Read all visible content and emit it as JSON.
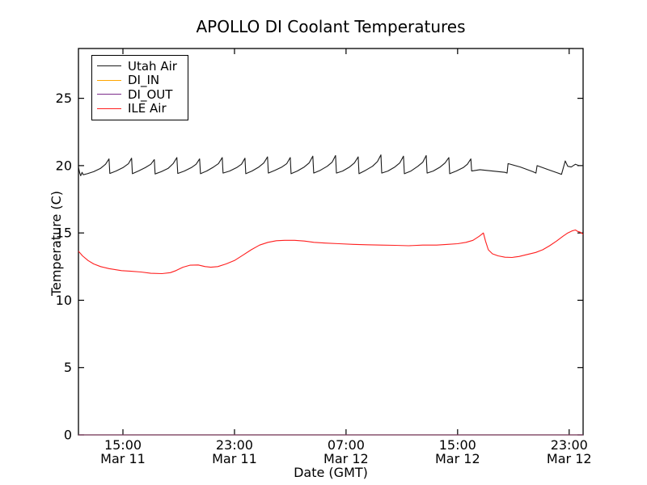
{
  "chart_data": {
    "type": "line",
    "title": "APOLLO DI Coolant Temperatures",
    "xlabel": "Date (GMT)",
    "ylabel": "Temperature (C)",
    "x_unit": "hours since Mar 11 00:00 GMT",
    "xlim": [
      11.81,
      48.0
    ],
    "ylim": [
      0,
      28.7
    ],
    "yticks": [
      0,
      5,
      10,
      15,
      20,
      25
    ],
    "xticks": [
      {
        "t": 15,
        "time": "15:00",
        "date": "Mar 11"
      },
      {
        "t": 23,
        "time": "23:00",
        "date": "Mar 11"
      },
      {
        "t": 31,
        "time": "07:00",
        "date": "Mar 12"
      },
      {
        "t": 39,
        "time": "15:00",
        "date": "Mar 12"
      },
      {
        "t": 47,
        "time": "23:00",
        "date": "Mar 12"
      }
    ],
    "grid": false,
    "legend_position": "upper left",
    "series": [
      {
        "name": "Utah Air",
        "color": "#1a1a1a",
        "opacity": 1,
        "points": [
          [
            11.81,
            19.9
          ],
          [
            11.9,
            19.45
          ],
          [
            11.97,
            19.25
          ],
          [
            12.07,
            19.5
          ],
          [
            12.15,
            19.32
          ],
          [
            12.45,
            19.4
          ],
          [
            12.9,
            19.55
          ],
          [
            13.4,
            19.8
          ],
          [
            13.75,
            20.1
          ],
          [
            14.0,
            20.5
          ],
          [
            14.06,
            19.42
          ],
          [
            14.5,
            19.6
          ],
          [
            15.0,
            19.85
          ],
          [
            15.4,
            20.15
          ],
          [
            15.62,
            20.55
          ],
          [
            15.68,
            19.4
          ],
          [
            16.1,
            19.6
          ],
          [
            16.6,
            19.85
          ],
          [
            17.0,
            20.1
          ],
          [
            17.25,
            20.45
          ],
          [
            17.31,
            19.38
          ],
          [
            17.75,
            19.55
          ],
          [
            18.25,
            19.8
          ],
          [
            18.6,
            20.15
          ],
          [
            18.87,
            20.6
          ],
          [
            18.93,
            19.42
          ],
          [
            19.4,
            19.6
          ],
          [
            19.9,
            19.85
          ],
          [
            20.25,
            20.1
          ],
          [
            20.5,
            20.5
          ],
          [
            20.56,
            19.4
          ],
          [
            21.0,
            19.6
          ],
          [
            21.5,
            19.9
          ],
          [
            21.85,
            20.15
          ],
          [
            22.12,
            20.6
          ],
          [
            22.18,
            19.45
          ],
          [
            22.65,
            19.6
          ],
          [
            23.15,
            19.85
          ],
          [
            23.5,
            20.1
          ],
          [
            23.75,
            20.55
          ],
          [
            23.81,
            19.4
          ],
          [
            24.25,
            19.6
          ],
          [
            24.75,
            19.9
          ],
          [
            25.1,
            20.2
          ],
          [
            25.37,
            20.65
          ],
          [
            25.43,
            19.45
          ],
          [
            25.9,
            19.65
          ],
          [
            26.4,
            19.9
          ],
          [
            26.75,
            20.15
          ],
          [
            27.0,
            20.6
          ],
          [
            27.06,
            19.4
          ],
          [
            27.5,
            19.6
          ],
          [
            28.0,
            19.9
          ],
          [
            28.35,
            20.2
          ],
          [
            28.62,
            20.7
          ],
          [
            28.68,
            19.45
          ],
          [
            29.15,
            19.65
          ],
          [
            29.65,
            19.95
          ],
          [
            30.0,
            20.25
          ],
          [
            30.25,
            20.75
          ],
          [
            30.31,
            19.45
          ],
          [
            30.75,
            19.6
          ],
          [
            31.25,
            19.9
          ],
          [
            31.6,
            20.2
          ],
          [
            31.87,
            20.65
          ],
          [
            31.93,
            19.4
          ],
          [
            32.4,
            19.65
          ],
          [
            32.9,
            19.95
          ],
          [
            33.25,
            20.3
          ],
          [
            33.5,
            20.8
          ],
          [
            33.56,
            19.45
          ],
          [
            34.0,
            19.6
          ],
          [
            34.5,
            19.9
          ],
          [
            34.85,
            20.2
          ],
          [
            35.12,
            20.7
          ],
          [
            35.18,
            19.4
          ],
          [
            35.65,
            19.6
          ],
          [
            36.15,
            19.95
          ],
          [
            36.5,
            20.25
          ],
          [
            36.75,
            20.75
          ],
          [
            36.81,
            19.45
          ],
          [
            37.25,
            19.6
          ],
          [
            37.75,
            19.9
          ],
          [
            38.1,
            20.2
          ],
          [
            38.37,
            20.6
          ],
          [
            38.43,
            19.4
          ],
          [
            38.9,
            19.6
          ],
          [
            39.4,
            19.85
          ],
          [
            39.7,
            20.1
          ],
          [
            39.95,
            20.5
          ],
          [
            40.01,
            19.6
          ],
          [
            40.6,
            19.7
          ],
          [
            41.5,
            19.6
          ],
          [
            42.4,
            19.5
          ],
          [
            42.55,
            19.45
          ],
          [
            42.62,
            20.15
          ],
          [
            43.5,
            19.9
          ],
          [
            44.4,
            19.55
          ],
          [
            44.62,
            19.45
          ],
          [
            44.7,
            20.0
          ],
          [
            45.5,
            19.7
          ],
          [
            46.2,
            19.45
          ],
          [
            46.45,
            19.35
          ],
          [
            46.72,
            20.35
          ],
          [
            46.9,
            19.95
          ],
          [
            47.15,
            19.9
          ],
          [
            47.45,
            20.1
          ],
          [
            47.7,
            20.0
          ],
          [
            48.0,
            20.0
          ]
        ]
      },
      {
        "name": "DI_IN",
        "color": "#ffa500",
        "opacity": 1,
        "points": [
          [
            11.81,
            0
          ],
          [
            48.0,
            0
          ]
        ]
      },
      {
        "name": "DI_OUT",
        "color": "#7d2d8b",
        "opacity": 0.8,
        "points": [
          [
            11.81,
            0
          ],
          [
            48.0,
            0
          ]
        ]
      },
      {
        "name": "ILE Air",
        "color": "#ff1f1f",
        "opacity": 1,
        "points": [
          [
            11.81,
            13.65
          ],
          [
            12.1,
            13.3
          ],
          [
            12.5,
            12.95
          ],
          [
            12.9,
            12.7
          ],
          [
            13.4,
            12.5
          ],
          [
            14.0,
            12.35
          ],
          [
            14.9,
            12.2
          ],
          [
            15.6,
            12.15
          ],
          [
            16.3,
            12.1
          ],
          [
            17.0,
            12.0
          ],
          [
            17.8,
            11.98
          ],
          [
            18.4,
            12.05
          ],
          [
            18.8,
            12.2
          ],
          [
            19.3,
            12.45
          ],
          [
            19.8,
            12.6
          ],
          [
            20.4,
            12.62
          ],
          [
            20.9,
            12.5
          ],
          [
            21.3,
            12.45
          ],
          [
            21.8,
            12.5
          ],
          [
            22.4,
            12.7
          ],
          [
            23.0,
            12.95
          ],
          [
            23.6,
            13.35
          ],
          [
            24.2,
            13.75
          ],
          [
            24.8,
            14.1
          ],
          [
            25.4,
            14.3
          ],
          [
            26.0,
            14.42
          ],
          [
            26.6,
            14.45
          ],
          [
            27.3,
            14.45
          ],
          [
            28.0,
            14.4
          ],
          [
            28.7,
            14.3
          ],
          [
            29.5,
            14.25
          ],
          [
            30.5,
            14.2
          ],
          [
            31.5,
            14.15
          ],
          [
            32.5,
            14.12
          ],
          [
            33.5,
            14.1
          ],
          [
            34.5,
            14.08
          ],
          [
            35.5,
            14.05
          ],
          [
            36.5,
            14.1
          ],
          [
            37.5,
            14.1
          ],
          [
            38.3,
            14.15
          ],
          [
            39.0,
            14.2
          ],
          [
            39.6,
            14.3
          ],
          [
            40.1,
            14.45
          ],
          [
            40.55,
            14.75
          ],
          [
            40.85,
            15.0
          ],
          [
            41.0,
            14.4
          ],
          [
            41.2,
            13.75
          ],
          [
            41.5,
            13.45
          ],
          [
            41.9,
            13.3
          ],
          [
            42.4,
            13.2
          ],
          [
            42.9,
            13.18
          ],
          [
            43.4,
            13.25
          ],
          [
            44.0,
            13.4
          ],
          [
            44.6,
            13.55
          ],
          [
            45.1,
            13.75
          ],
          [
            45.6,
            14.05
          ],
          [
            46.1,
            14.4
          ],
          [
            46.55,
            14.75
          ],
          [
            46.9,
            15.0
          ],
          [
            47.2,
            15.15
          ],
          [
            47.45,
            15.22
          ],
          [
            47.6,
            15.12
          ],
          [
            47.8,
            15.05
          ],
          [
            48.0,
            14.9
          ]
        ]
      }
    ]
  },
  "legend": {
    "items": [
      {
        "label": "Utah Air",
        "color": "#1a1a1a"
      },
      {
        "label": "DI_IN",
        "color": "#ffa500"
      },
      {
        "label": "DI_OUT",
        "color": "#7d2d8b"
      },
      {
        "label": "ILE Air",
        "color": "#ff1f1f"
      }
    ]
  },
  "style": {
    "axis_color": "#000000",
    "background": "#ffffff"
  }
}
